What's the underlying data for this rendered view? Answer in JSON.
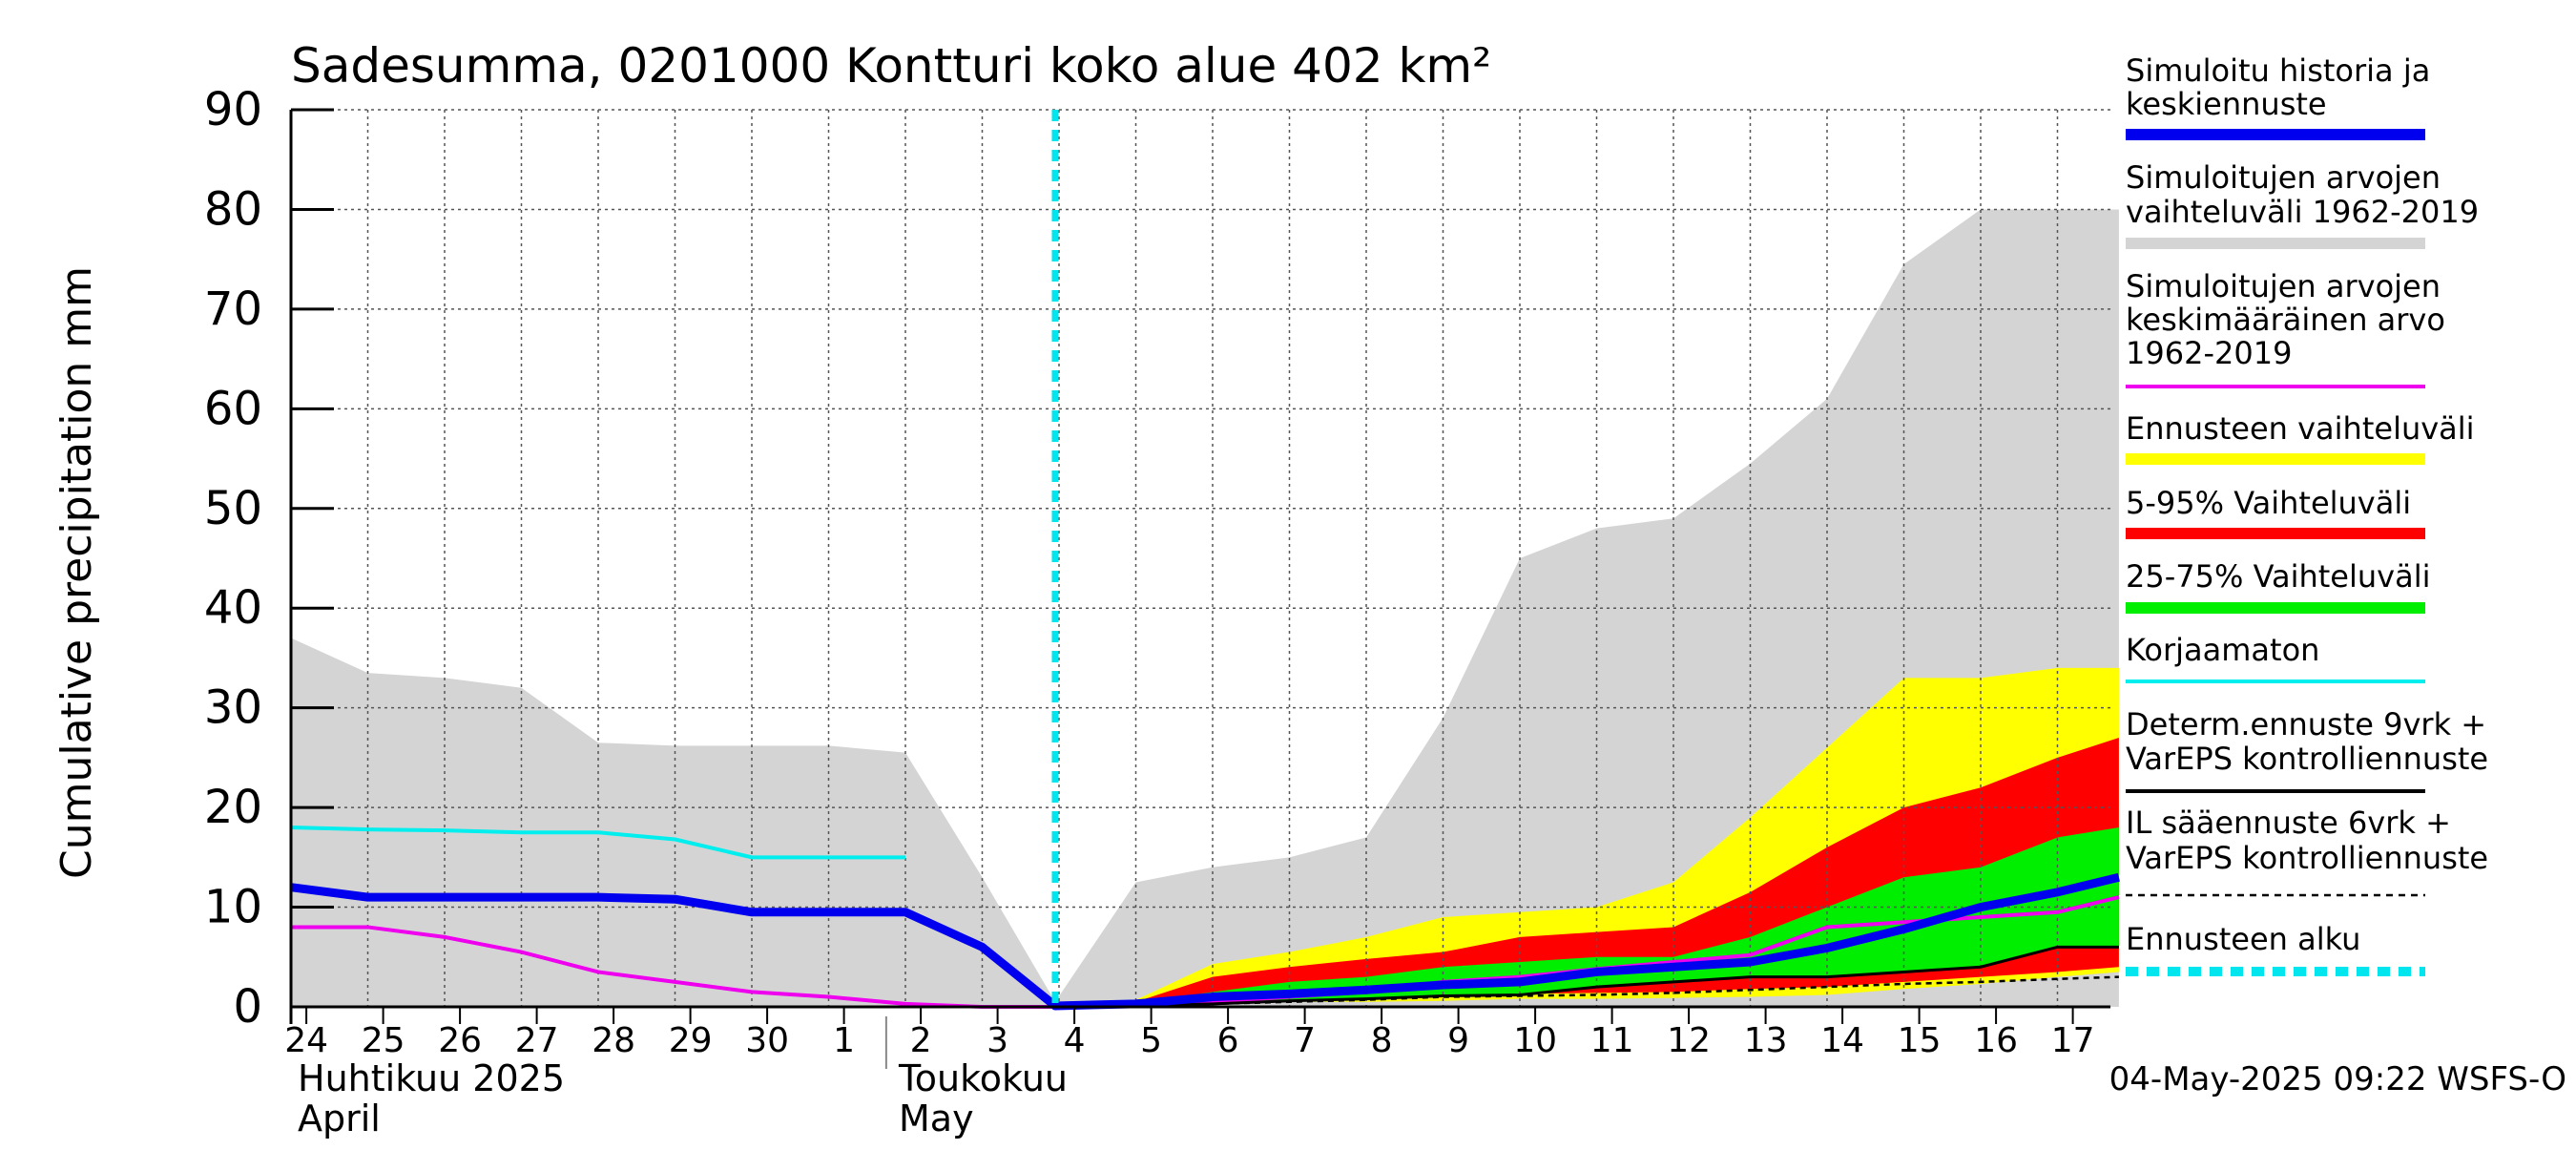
{
  "chart_data": {
    "type": "area",
    "title": "Sadesumma, 0201000 Kontturi koko alue 402 km²",
    "ylabel": "Cumulative precipitation   mm",
    "ylim": [
      0,
      90
    ],
    "yticks": [
      "0",
      "10",
      "20",
      "30",
      "40",
      "50",
      "60",
      "70",
      "80",
      "90"
    ],
    "grid": true,
    "legend_placement": "right",
    "x_tick_labels": [
      "24",
      "25",
      "26",
      "27",
      "28",
      "29",
      "30",
      "1",
      "2",
      "3",
      "4",
      "5",
      "6",
      "7",
      "8",
      "9",
      "10",
      "11",
      "12",
      "13",
      "14",
      "15",
      "16",
      "17"
    ],
    "month_labels": [
      {
        "line1": "Huhtikuu  2025",
        "line2": "April"
      },
      {
        "line1": "Toukokuu",
        "line2": "May"
      }
    ],
    "x_range": [
      0,
      23.8
    ],
    "forecast_start_x": 9.95,
    "timestamp": "04-May-2025 09:22 WSFS-O",
    "colors": {
      "history_range": "#d4d4d4",
      "forecast_range": "#ffff00",
      "p5_95": "#ff0000",
      "p25_75": "#00ee00",
      "simulated": "#0000ee",
      "mean": "#ee00ee",
      "uncorrected": "#00eeee",
      "determ": "#000000",
      "il": "#000000",
      "forecast_start": "#00e5ee"
    },
    "legend": [
      {
        "key": "simulated",
        "lines": [
          "Simuloitu historia ja",
          "keskiennuste"
        ],
        "color": "#0000ee",
        "style": "thick"
      },
      {
        "key": "history_range",
        "lines": [
          "Simuloitujen arvojen",
          "vaihteluväli 1962-2019"
        ],
        "color": "#d4d4d4",
        "style": "thick"
      },
      {
        "key": "mean",
        "lines": [
          "Simuloitujen arvojen",
          "keskimääräinen arvo",
          "   1962-2019"
        ],
        "color": "#ee00ee",
        "style": "thin"
      },
      {
        "key": "forecast_range",
        "lines": [
          "Ennusteen vaihteluväli"
        ],
        "color": "#ffff00",
        "style": "thick"
      },
      {
        "key": "p5_95",
        "lines": [
          "5-95% Vaihteluväli"
        ],
        "color": "#ff0000",
        "style": "thick"
      },
      {
        "key": "p25_75",
        "lines": [
          "25-75% Vaihteluväli"
        ],
        "color": "#00ee00",
        "style": "thick"
      },
      {
        "key": "uncorrected",
        "lines": [
          "Korjaamaton"
        ],
        "color": "#00eeee",
        "style": "thin"
      },
      {
        "key": "determ",
        "lines": [
          "Determ.ennuste 9vrk +",
          "VarEPS kontrolliennuste"
        ],
        "color": "#000000",
        "style": "thin"
      },
      {
        "key": "il",
        "lines": [
          "IL sääennuste 6vrk  +",
          "  VarEPS kontrolliennuste"
        ],
        "color": "#000000",
        "style": "dashed"
      },
      {
        "key": "forecast_start",
        "lines": [
          "Ennusteen alku"
        ],
        "color": "#00e5ee",
        "style": "dotted"
      }
    ],
    "series": {
      "history_range_upper": {
        "x": [
          0,
          1,
          2,
          3,
          4,
          5,
          6,
          7,
          8,
          9,
          9.95,
          11,
          12,
          13,
          14,
          15,
          16,
          17,
          18,
          19,
          20,
          21,
          22,
          23,
          23.8
        ],
        "y": [
          37,
          33.5,
          33,
          32,
          26.5,
          26.2,
          26.2,
          26.2,
          25.5,
          13,
          0.5,
          12.5,
          14,
          15,
          17,
          29,
          45,
          48,
          49,
          54.5,
          61,
          74.5,
          80,
          80,
          80
        ]
      },
      "forecast_range": {
        "x": [
          9.95,
          11,
          12,
          13,
          14,
          15,
          16,
          17,
          18,
          19,
          20,
          21,
          22,
          23,
          23.8
        ],
        "upper": [
          0.2,
          0.7,
          4.3,
          5.5,
          7,
          9,
          9.5,
          10,
          12.5,
          19,
          26,
          33,
          33,
          34,
          34
        ],
        "lower": [
          0,
          0,
          0.4,
          0.5,
          0.5,
          0.6,
          0.8,
          0.8,
          0.9,
          1,
          1.2,
          1.8,
          2.3,
          3,
          3.5
        ]
      },
      "p5_95": {
        "x": [
          9.95,
          11,
          12,
          13,
          14,
          15,
          16,
          17,
          18,
          19,
          20,
          21,
          22,
          23,
          23.8
        ],
        "upper": [
          0.2,
          0.5,
          3,
          4,
          4.8,
          5.5,
          7,
          7.5,
          8,
          11.5,
          16,
          20,
          22,
          25,
          27
        ],
        "lower": [
          0,
          0.1,
          0.5,
          0.7,
          0.9,
          1.1,
          1.3,
          1.4,
          1.5,
          1.8,
          2,
          2.5,
          3,
          3.5,
          4
        ]
      },
      "p25_75": {
        "x": [
          9.95,
          11,
          12,
          13,
          14,
          15,
          16,
          17,
          18,
          19,
          20,
          21,
          22,
          23,
          23.8
        ],
        "upper": [
          0.1,
          0.4,
          1.5,
          2.5,
          3,
          4,
          4.5,
          5,
          5,
          7,
          10,
          13,
          14,
          17,
          18
        ]
      },
      "simulated": {
        "x": [
          0,
          1,
          2,
          3,
          4,
          5,
          6,
          7,
          8,
          9,
          9.95,
          11,
          12,
          13,
          14,
          15,
          16,
          17,
          18,
          19,
          20,
          21,
          22,
          23,
          23.8
        ],
        "y": [
          12,
          11,
          11,
          11,
          11,
          10.8,
          9.5,
          9.5,
          9.5,
          6,
          0.1,
          0.3,
          1,
          1.3,
          1.7,
          2.2,
          2.5,
          3.5,
          4,
          4.5,
          5.9,
          7.8,
          10,
          11.5,
          13
        ]
      },
      "mean": {
        "x": [
          0,
          1,
          2,
          3,
          4,
          5,
          6,
          7,
          8,
          9,
          9.95,
          11,
          12,
          13,
          14,
          15,
          16,
          17,
          18,
          19,
          20,
          21,
          22,
          23,
          23.8
        ],
        "y": [
          8,
          8,
          7,
          5.5,
          3.5,
          2.5,
          1.5,
          1,
          0.3,
          0,
          0,
          0.2,
          0.5,
          1,
          1.5,
          2.5,
          3,
          3.8,
          4.5,
          5.2,
          8,
          8.5,
          9,
          9.5,
          11
        ]
      },
      "uncorrected": {
        "x": [
          0,
          1,
          2,
          3,
          4,
          5,
          6,
          7,
          8
        ],
        "y": [
          18,
          17.8,
          17.7,
          17.5,
          17.5,
          16.8,
          15,
          15,
          15
        ]
      },
      "determ": {
        "x": [
          9.95,
          11,
          12,
          13,
          14,
          15,
          16,
          17,
          18,
          19,
          20,
          21,
          22,
          23,
          23.8
        ],
        "y": [
          0,
          0.1,
          0.3,
          0.6,
          0.8,
          1.1,
          1.2,
          2,
          2.5,
          3,
          3,
          3.5,
          4,
          6,
          6
        ]
      },
      "il": {
        "x": [
          9.95,
          11,
          12,
          13,
          14,
          15,
          16,
          17,
          18,
          19,
          20,
          21,
          22,
          23,
          23.8
        ],
        "y": [
          0,
          0.1,
          0.3,
          0.5,
          0.7,
          1,
          1.1,
          1.2,
          1.4,
          1.7,
          2,
          2.3,
          2.5,
          2.8,
          3
        ]
      }
    }
  }
}
